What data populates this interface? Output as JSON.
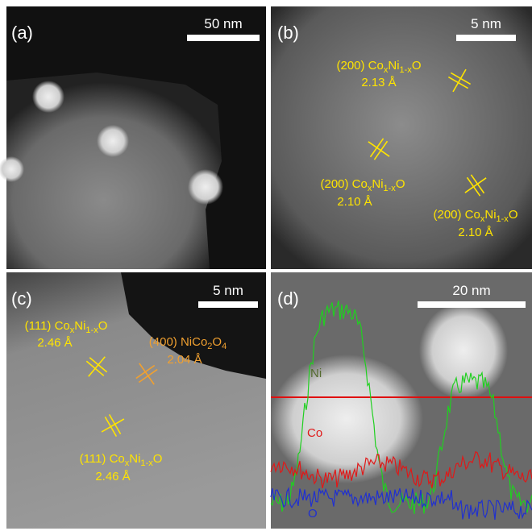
{
  "panels": [
    {
      "label": "(a)",
      "scale_bar": "50 nm"
    },
    {
      "label": "(b)",
      "scale_bar": "5 nm",
      "annotations": [
        {
          "phase": [
            {
              "t": "(200) Co"
            },
            {
              "sub": "x"
            },
            {
              "t": "Ni"
            },
            {
              "sub": "1-x"
            },
            {
              "t": "O"
            }
          ],
          "spacing": "2.13 Å"
        },
        {
          "phase": [
            {
              "t": "(200) Co"
            },
            {
              "sub": "x"
            },
            {
              "t": "Ni"
            },
            {
              "sub": "1-x"
            },
            {
              "t": "O"
            }
          ],
          "spacing": "2.10 Å"
        },
        {
          "phase": [
            {
              "t": "(200) Co"
            },
            {
              "sub": "x"
            },
            {
              "t": "Ni"
            },
            {
              "sub": "1-x"
            },
            {
              "t": "O"
            }
          ],
          "spacing": "2.10 Å"
        }
      ]
    },
    {
      "label": "(c)",
      "scale_bar": "5 nm",
      "annotations": [
        {
          "phase": [
            {
              "t": "(111) Co"
            },
            {
              "sub": "x"
            },
            {
              "t": "Ni"
            },
            {
              "sub": "1-x"
            },
            {
              "t": "O"
            }
          ],
          "spacing": "2.46 Å"
        },
        {
          "phase": [
            {
              "t": "(400) NiCo"
            },
            {
              "sub": "2"
            },
            {
              "t": "O"
            },
            {
              "sub": "4"
            }
          ],
          "spacing": "2.04 Å"
        },
        {
          "phase": [
            {
              "t": "(111) Co"
            },
            {
              "sub": "x"
            },
            {
              "t": "Ni"
            },
            {
              "sub": "1-x"
            },
            {
              "t": "O"
            }
          ],
          "spacing": "2.46 Å"
        }
      ]
    },
    {
      "label": "(d)",
      "scale_bar": "20 nm",
      "profiles": [
        "Ni",
        "Co",
        "O"
      ]
    }
  ]
}
